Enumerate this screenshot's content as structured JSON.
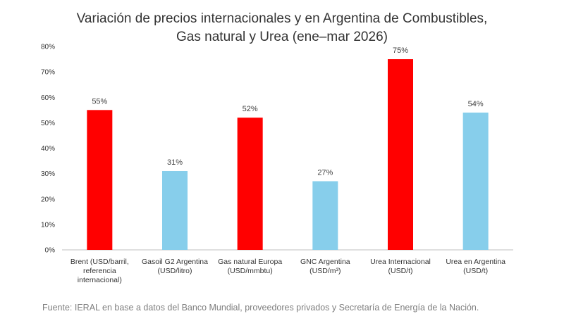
{
  "chart_data": {
    "type": "bar",
    "title_lines": [
      "Variación de precios internacionales y en Argentina de Combustibles,",
      "Gas natural y Urea (ene–mar 2026)"
    ],
    "categories": [
      [
        "Brent (USD/barril,",
        "referencia",
        "internacional)"
      ],
      [
        "Gasoil G2 Argentina",
        "(USD/litro)"
      ],
      [
        "Gas natural Europa",
        "(USD/mmbtu)"
      ],
      [
        "GNC Argentina",
        "(USD/m³)"
      ],
      [
        "Urea Internacional",
        "(USD/t)"
      ],
      [
        "Urea en Argentina",
        "(USD/t)"
      ]
    ],
    "values": [
      55,
      31,
      52,
      27,
      75,
      54
    ],
    "data_labels": [
      "55%",
      "31%",
      "52%",
      "27%",
      "75%",
      "54%"
    ],
    "colors": [
      "#ff0000",
      "#87ceeb",
      "#ff0000",
      "#87ceeb",
      "#ff0000",
      "#87ceeb"
    ],
    "ylim": [
      0,
      80
    ],
    "yticks": [
      0,
      10,
      20,
      30,
      40,
      50,
      60,
      70,
      80
    ],
    "ytick_labels": [
      "0%",
      "10%",
      "20%",
      "30%",
      "40%",
      "50%",
      "60%",
      "70%",
      "80%"
    ],
    "xlabel": "",
    "ylabel": "",
    "grid": false,
    "source": "Fuente: IERAL en base a datos del Banco Mundial, proveedores privados y Secretaría de Energía de la Nación."
  }
}
